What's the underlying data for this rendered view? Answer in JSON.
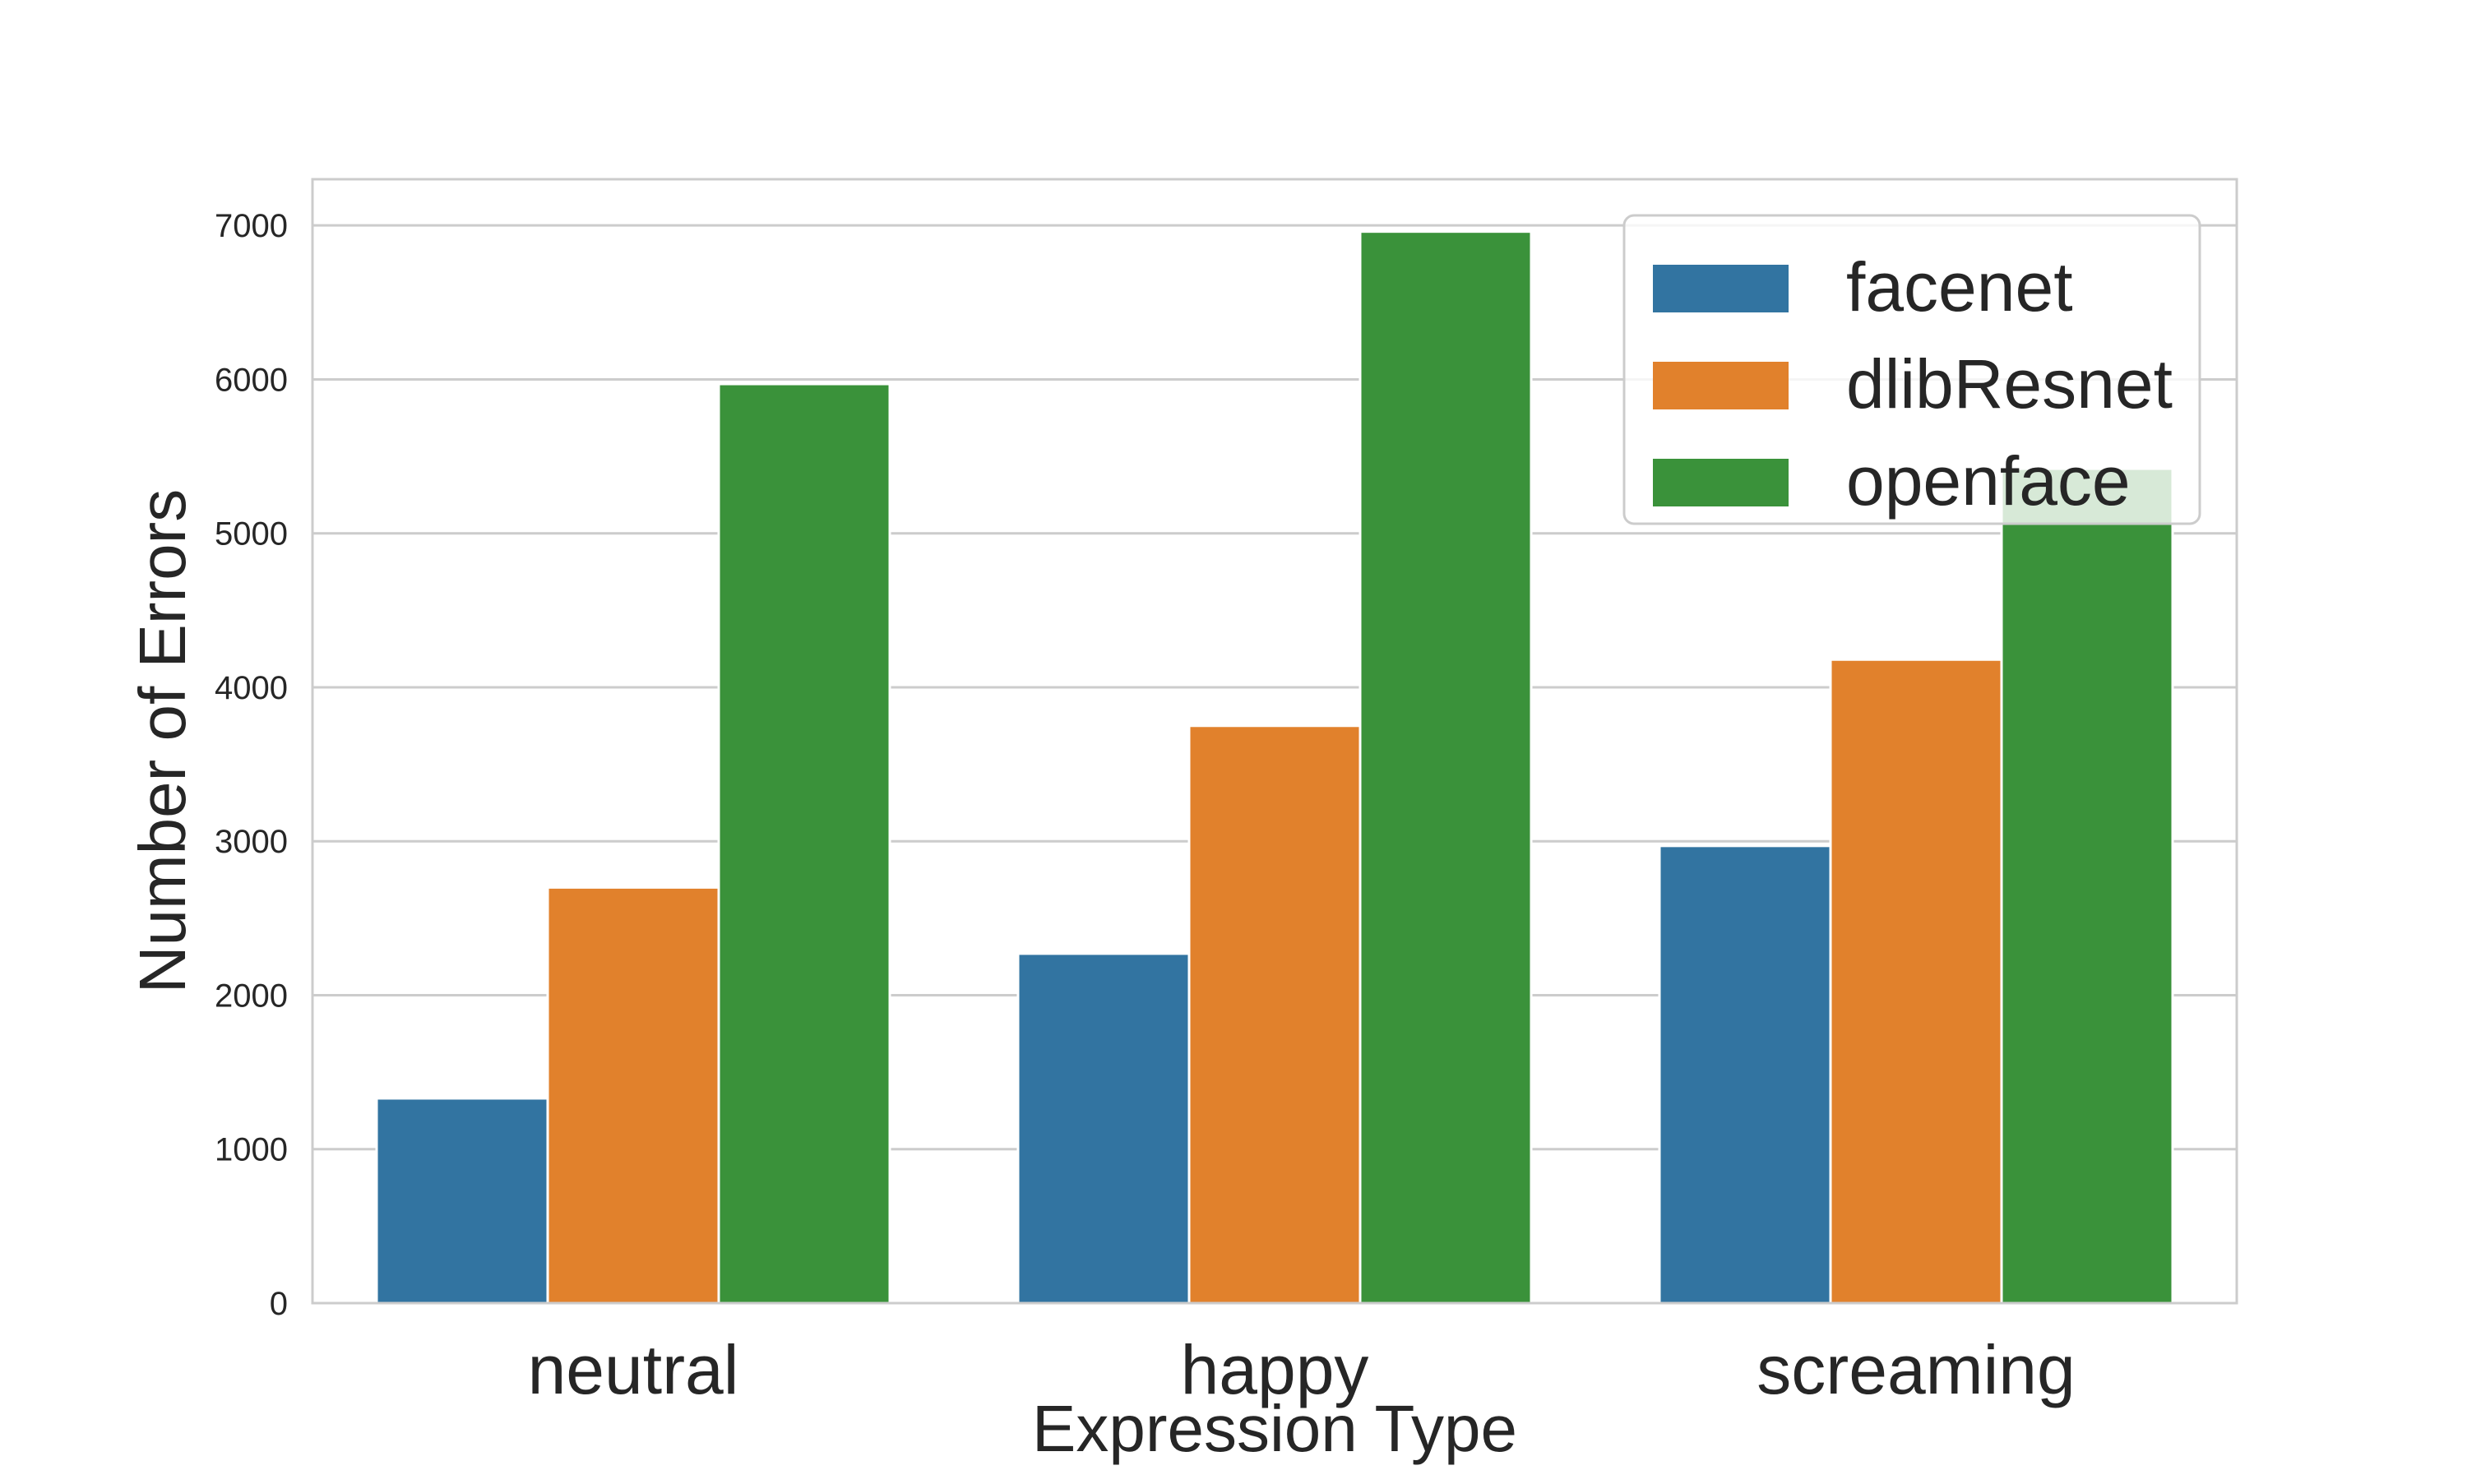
{
  "chart_data": {
    "type": "bar",
    "title": "",
    "xlabel": "Expression Type",
    "ylabel": "Number of Errors",
    "categories": [
      "neutral",
      "happy",
      "screaming"
    ],
    "series": [
      {
        "name": "facenet",
        "color": "#3274a1",
        "values": [
          1330,
          2270,
          2970
        ]
      },
      {
        "name": "dlibResnet",
        "color": "#e1812c",
        "values": [
          2700,
          3750,
          4180
        ]
      },
      {
        "name": "openface",
        "color": "#3a923a",
        "values": [
          5970,
          6960,
          5420
        ]
      }
    ],
    "ylim": [
      0,
      7300
    ],
    "yticks": [
      0,
      1000,
      2000,
      3000,
      4000,
      5000,
      6000,
      7000
    ],
    "grid": true,
    "legend_position": "top-right"
  }
}
